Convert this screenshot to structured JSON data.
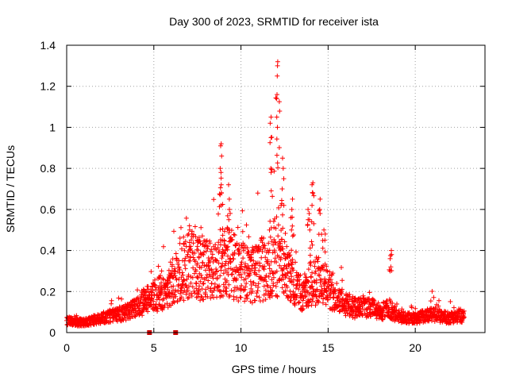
{
  "chart_data": {
    "type": "scatter",
    "title": "Day 300 of 2023, SRMTID for receiver ista",
    "xlabel": "GPS time / hours",
    "ylabel": "SRMTID / TECUs",
    "xlim": [
      0,
      24
    ],
    "ylim": [
      0,
      1.4
    ],
    "xticks": [
      0,
      5,
      10,
      15,
      20
    ],
    "xtick_labels": [
      "0",
      "5",
      "10",
      "15",
      "20"
    ],
    "yticks": [
      0,
      0.2,
      0.4,
      0.6,
      0.8,
      1.0,
      1.2,
      1.4
    ],
    "ytick_labels": [
      "0",
      "0.2",
      "0.4",
      "0.6",
      "0.8",
      "1",
      "1.2",
      "1.4"
    ],
    "grid": true,
    "marker": "+",
    "color": "#ff0000",
    "gap_markers": [
      {
        "x": 4.75,
        "y": 0
      },
      {
        "x": 6.25,
        "y": 0
      }
    ],
    "series": [
      {
        "name": "SRMTID",
        "profile": [
          [
            0.0,
            0.06
          ],
          [
            0.5,
            0.05
          ],
          [
            1.0,
            0.05
          ],
          [
            1.5,
            0.06
          ],
          [
            2.0,
            0.07
          ],
          [
            2.5,
            0.08
          ],
          [
            3.0,
            0.09
          ],
          [
            3.5,
            0.1
          ],
          [
            4.0,
            0.12
          ],
          [
            4.5,
            0.16
          ],
          [
            5.0,
            0.17
          ],
          [
            5.5,
            0.2
          ],
          [
            6.0,
            0.24
          ],
          [
            6.5,
            0.3
          ],
          [
            7.0,
            0.33
          ],
          [
            7.5,
            0.33
          ],
          [
            8.0,
            0.3
          ],
          [
            8.5,
            0.3
          ],
          [
            9.0,
            0.34
          ],
          [
            9.5,
            0.33
          ],
          [
            10.0,
            0.3
          ],
          [
            10.5,
            0.28
          ],
          [
            11.0,
            0.3
          ],
          [
            11.5,
            0.32
          ],
          [
            12.0,
            0.38
          ],
          [
            12.5,
            0.33
          ],
          [
            13.0,
            0.26
          ],
          [
            13.5,
            0.18
          ],
          [
            14.0,
            0.24
          ],
          [
            14.5,
            0.26
          ],
          [
            15.0,
            0.22
          ],
          [
            15.5,
            0.17
          ],
          [
            16.0,
            0.14
          ],
          [
            16.5,
            0.12
          ],
          [
            17.0,
            0.12
          ],
          [
            17.5,
            0.12
          ],
          [
            18.0,
            0.1
          ],
          [
            18.5,
            0.12
          ],
          [
            19.0,
            0.08
          ],
          [
            19.5,
            0.07
          ],
          [
            20.0,
            0.07
          ],
          [
            20.5,
            0.08
          ],
          [
            21.0,
            0.09
          ],
          [
            21.5,
            0.08
          ],
          [
            22.0,
            0.07
          ],
          [
            22.5,
            0.08
          ],
          [
            22.8,
            0.08
          ]
        ],
        "peaks": [
          {
            "x": 8.85,
            "values": [
              0.92,
              0.91,
              0.86,
              0.8,
              0.78,
              0.72,
              0.68,
              0.62
            ]
          },
          {
            "x": 9.3,
            "values": [
              0.72,
              0.65,
              0.6,
              0.55
            ]
          },
          {
            "x": 11.7,
            "values": [
              1.05,
              1.02,
              0.95,
              0.8,
              0.78
            ]
          },
          {
            "x": 12.1,
            "values": [
              1.32,
              1.3,
              1.25,
              1.16,
              1.14,
              1.05,
              1.0
            ]
          },
          {
            "x": 12.4,
            "values": [
              0.85,
              0.8,
              0.75,
              0.7,
              0.62
            ]
          },
          {
            "x": 12.9,
            "values": [
              0.65,
              0.6,
              0.56,
              0.5
            ]
          },
          {
            "x": 13.9,
            "values": [
              0.6,
              0.58,
              0.55,
              0.5
            ]
          },
          {
            "x": 14.1,
            "values": [
              0.73,
              0.72,
              0.68,
              0.62
            ]
          },
          {
            "x": 14.5,
            "values": [
              0.65,
              0.6,
              0.58
            ]
          },
          {
            "x": 14.8,
            "values": [
              0.5,
              0.48,
              0.45
            ]
          },
          {
            "x": 18.6,
            "values": [
              0.4,
              0.38,
              0.36,
              0.32
            ]
          },
          {
            "x": 7.0,
            "values": [
              0.52,
              0.5,
              0.48
            ]
          },
          {
            "x": 7.5,
            "values": [
              0.45,
              0.44,
              0.42
            ]
          }
        ]
      }
    ]
  }
}
